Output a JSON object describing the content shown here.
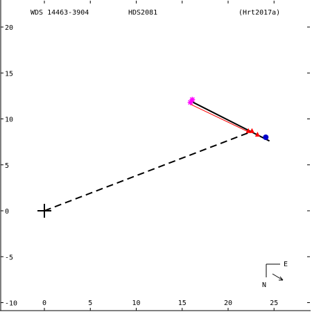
{
  "header": {
    "wds_id": "WDS 14463-3904",
    "hd_id": "HDS2081",
    "reference": "(Hrt2017a)"
  },
  "compass": {
    "east_label": "E",
    "north_label": "N"
  },
  "colors": {
    "background": "#ffffff",
    "axes": "#000000",
    "orbit_fit": "#000000",
    "residual_line": "#ff0000",
    "early_points": "#ff00ff",
    "late_points": "#ff0000",
    "latest_point": "#0000cc"
  },
  "chart_data": {
    "type": "scatter",
    "title": "",
    "xlim": [
      -4,
      29
    ],
    "ylim": [
      -10,
      22
    ],
    "x_ticks": [
      0,
      5,
      10,
      15,
      20,
      25
    ],
    "y_ticks": [
      -10,
      -5,
      0,
      5,
      10,
      15,
      20
    ],
    "x_tick_labels": [
      "0",
      "5",
      "10",
      "15",
      "20",
      "25"
    ],
    "y_tick_labels": [
      "-10",
      "-5",
      "0",
      "5",
      "10",
      "15",
      "20"
    ],
    "primary": [
      0,
      0
    ],
    "radius_vector_end": [
      22.5,
      8.6
    ],
    "series": [
      {
        "marker": "asterisk",
        "color": "#ff00ff",
        "points": [
          [
            16.1,
            12.1
          ],
          [
            15.9,
            11.8
          ]
        ]
      },
      {
        "marker": "triangle",
        "color": "#ff0000",
        "points": [
          [
            22.2,
            8.7
          ],
          [
            22.6,
            8.7
          ],
          [
            23.2,
            8.3
          ]
        ]
      },
      {
        "marker": "circle",
        "color": "#0000cc",
        "points": [
          [
            24.1,
            8.0
          ]
        ]
      }
    ],
    "orbit_segment": [
      [
        16.0,
        11.9
      ],
      [
        24.5,
        7.6
      ]
    ],
    "residual_segment": [
      [
        15.9,
        11.6
      ],
      [
        22.4,
        8.5
      ]
    ]
  }
}
